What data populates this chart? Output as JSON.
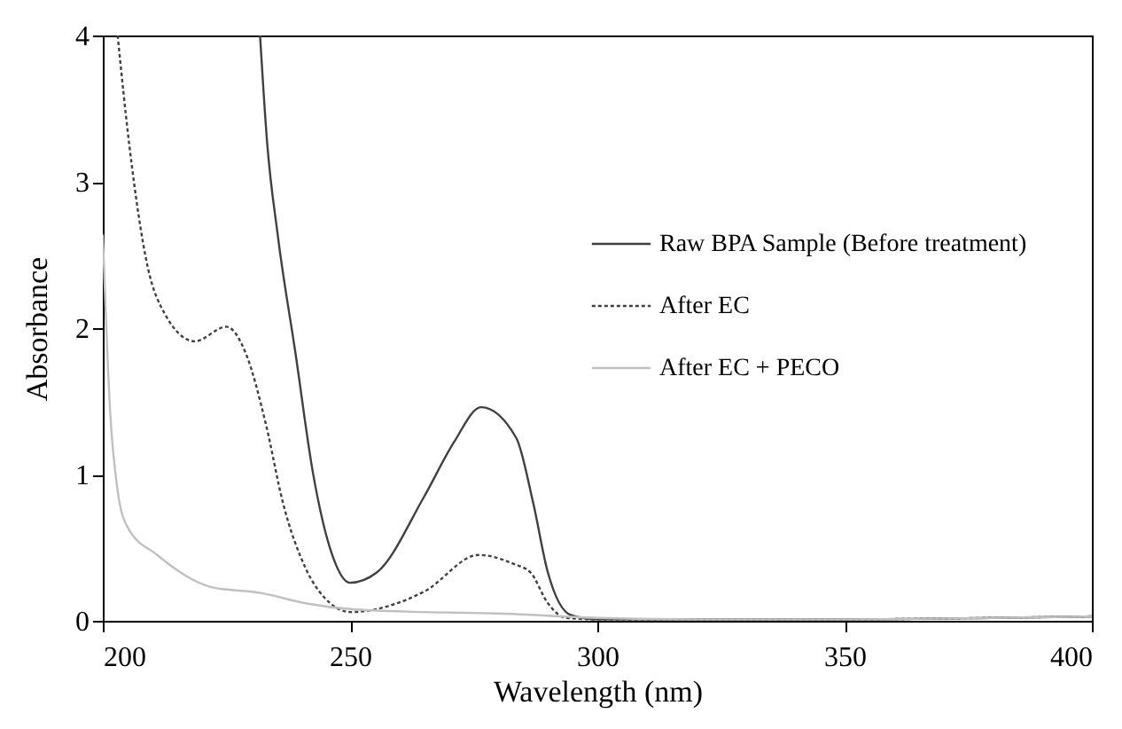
{
  "chart_data": {
    "type": "line",
    "xlabel": "Wavelength (nm)",
    "ylabel": "Absorbance",
    "xlim": [
      200,
      400
    ],
    "ylim": [
      0,
      4
    ],
    "xticks": [
      200,
      250,
      300,
      350,
      400
    ],
    "yticks": [
      0,
      1,
      2,
      3,
      4
    ],
    "grid": false,
    "legend": "right",
    "series": [
      {
        "name": "Raw BPA Sample (Before treatment)",
        "color": "#404040",
        "line_style": "solid",
        "x": [
          231.8,
          233.2,
          235.4,
          239,
          242.5,
          246,
          250,
          255.4,
          265,
          271,
          276.5,
          283.6,
          287,
          290,
          294.6,
          300,
          320,
          350,
          380,
          400
        ],
        "values": [
          4,
          3.28,
          2.63,
          1.82,
          1.01,
          0.49,
          0.26,
          0.33,
          0.85,
          1.22,
          1.46,
          1.25,
          0.81,
          0.33,
          0.04,
          0.01,
          0.01,
          0.01,
          0.02,
          0.03
        ]
      },
      {
        "name": "After EC",
        "color": "#404040",
        "line_style": "dotted",
        "x": [
          203,
          205.4,
          209,
          212.5,
          218.6,
          225,
          229,
          233,
          236.4,
          241,
          246,
          250,
          265,
          276,
          283,
          286.5,
          290,
          293.6,
          300,
          320,
          350,
          380,
          400
        ],
        "values": [
          4,
          3.24,
          2.43,
          2.1,
          1.91,
          2.01,
          1.82,
          1.34,
          0.81,
          0.36,
          0.12,
          0.06,
          0.2,
          0.45,
          0.39,
          0.33,
          0.12,
          0.02,
          0.01,
          0.01,
          0.01,
          0.02,
          0.03
        ]
      },
      {
        "name": "After EC + PECO",
        "color": "#c0c0c0",
        "line_style": "solid",
        "x": [
          200,
          201.5,
          203,
          205,
          211,
          222,
          232,
          241,
          250,
          265,
          280,
          300,
          320,
          350,
          380,
          400
        ],
        "values": [
          2.64,
          1.42,
          0.89,
          0.64,
          0.45,
          0.23,
          0.19,
          0.12,
          0.08,
          0.06,
          0.05,
          0.02,
          0.01,
          0.01,
          0.02,
          0.03
        ]
      }
    ]
  }
}
